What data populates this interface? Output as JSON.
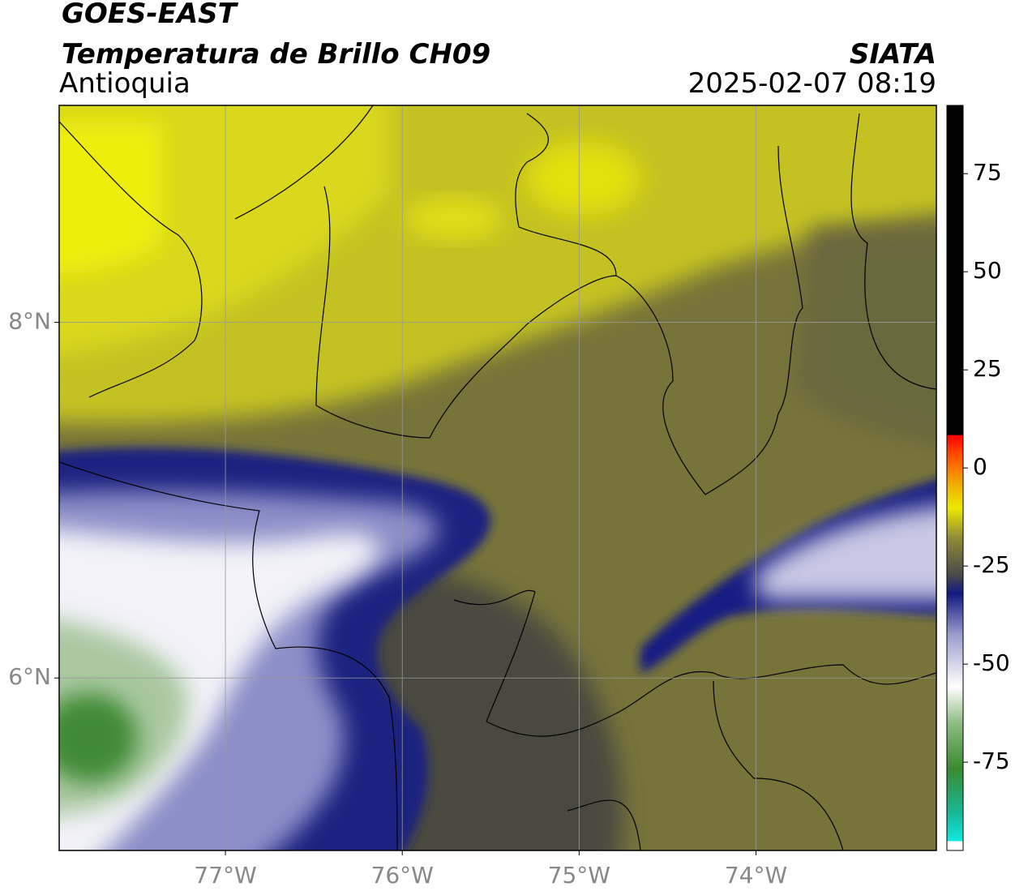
{
  "header": {
    "satellite": "GOES-EAST",
    "product": "Temperatura de Brillo CH09",
    "region": "Antioquia",
    "agency": "SIATA",
    "datetime": "2025-02-07 08:19"
  },
  "map": {
    "xlim": [
      -77.94,
      -72.98
    ],
    "ylim": [
      5.03,
      9.22
    ],
    "xticks": [
      {
        "value": -77,
        "label": "77°W"
      },
      {
        "value": -76,
        "label": "76°W"
      },
      {
        "value": -75,
        "label": "75°W"
      },
      {
        "value": -74,
        "label": "74°W"
      }
    ],
    "yticks": [
      {
        "value": 8,
        "label": "8°N"
      },
      {
        "value": 6,
        "label": "6°N"
      }
    ],
    "grid": true
  },
  "colorbar": {
    "clim": [
      -97.5,
      92.4
    ],
    "ticks": [
      75,
      50,
      25,
      0,
      -25,
      -50,
      -75
    ]
  }
}
